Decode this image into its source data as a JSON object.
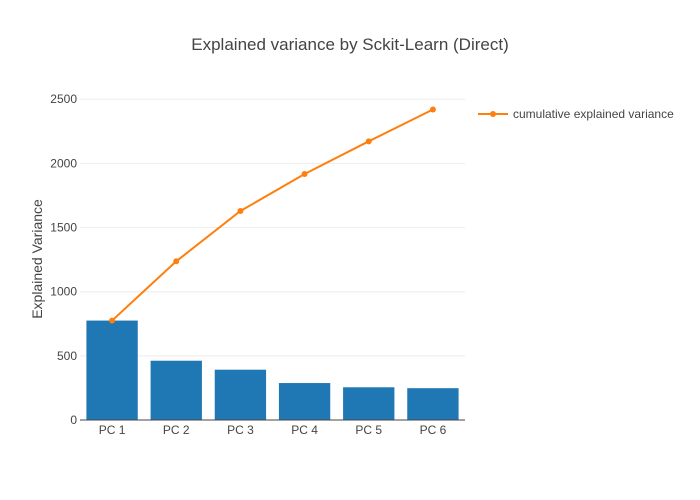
{
  "chart_data": {
    "type": "bar",
    "title": "Explained variance by Sckit-Learn (Direct)",
    "xlabel": "",
    "ylabel": "Explained Variance",
    "categories": [
      "PC 1",
      "PC 2",
      "PC 3",
      "PC 4",
      "PC 5",
      "PC 6"
    ],
    "ylim": [
      0,
      2650
    ],
    "yticks": [
      0,
      500,
      1000,
      1500,
      2000,
      2500
    ],
    "grid": true,
    "legend_position": "top-right",
    "series": [
      {
        "type": "bar",
        "values": [
          775,
          462,
          392,
          288,
          255,
          248
        ],
        "color": "#1f77b4"
      },
      {
        "type": "line",
        "name": "cumulative explained variance",
        "values": [
          775,
          1237,
          1629,
          1917,
          2172,
          2420
        ],
        "color": "#ff7f0e"
      }
    ]
  }
}
